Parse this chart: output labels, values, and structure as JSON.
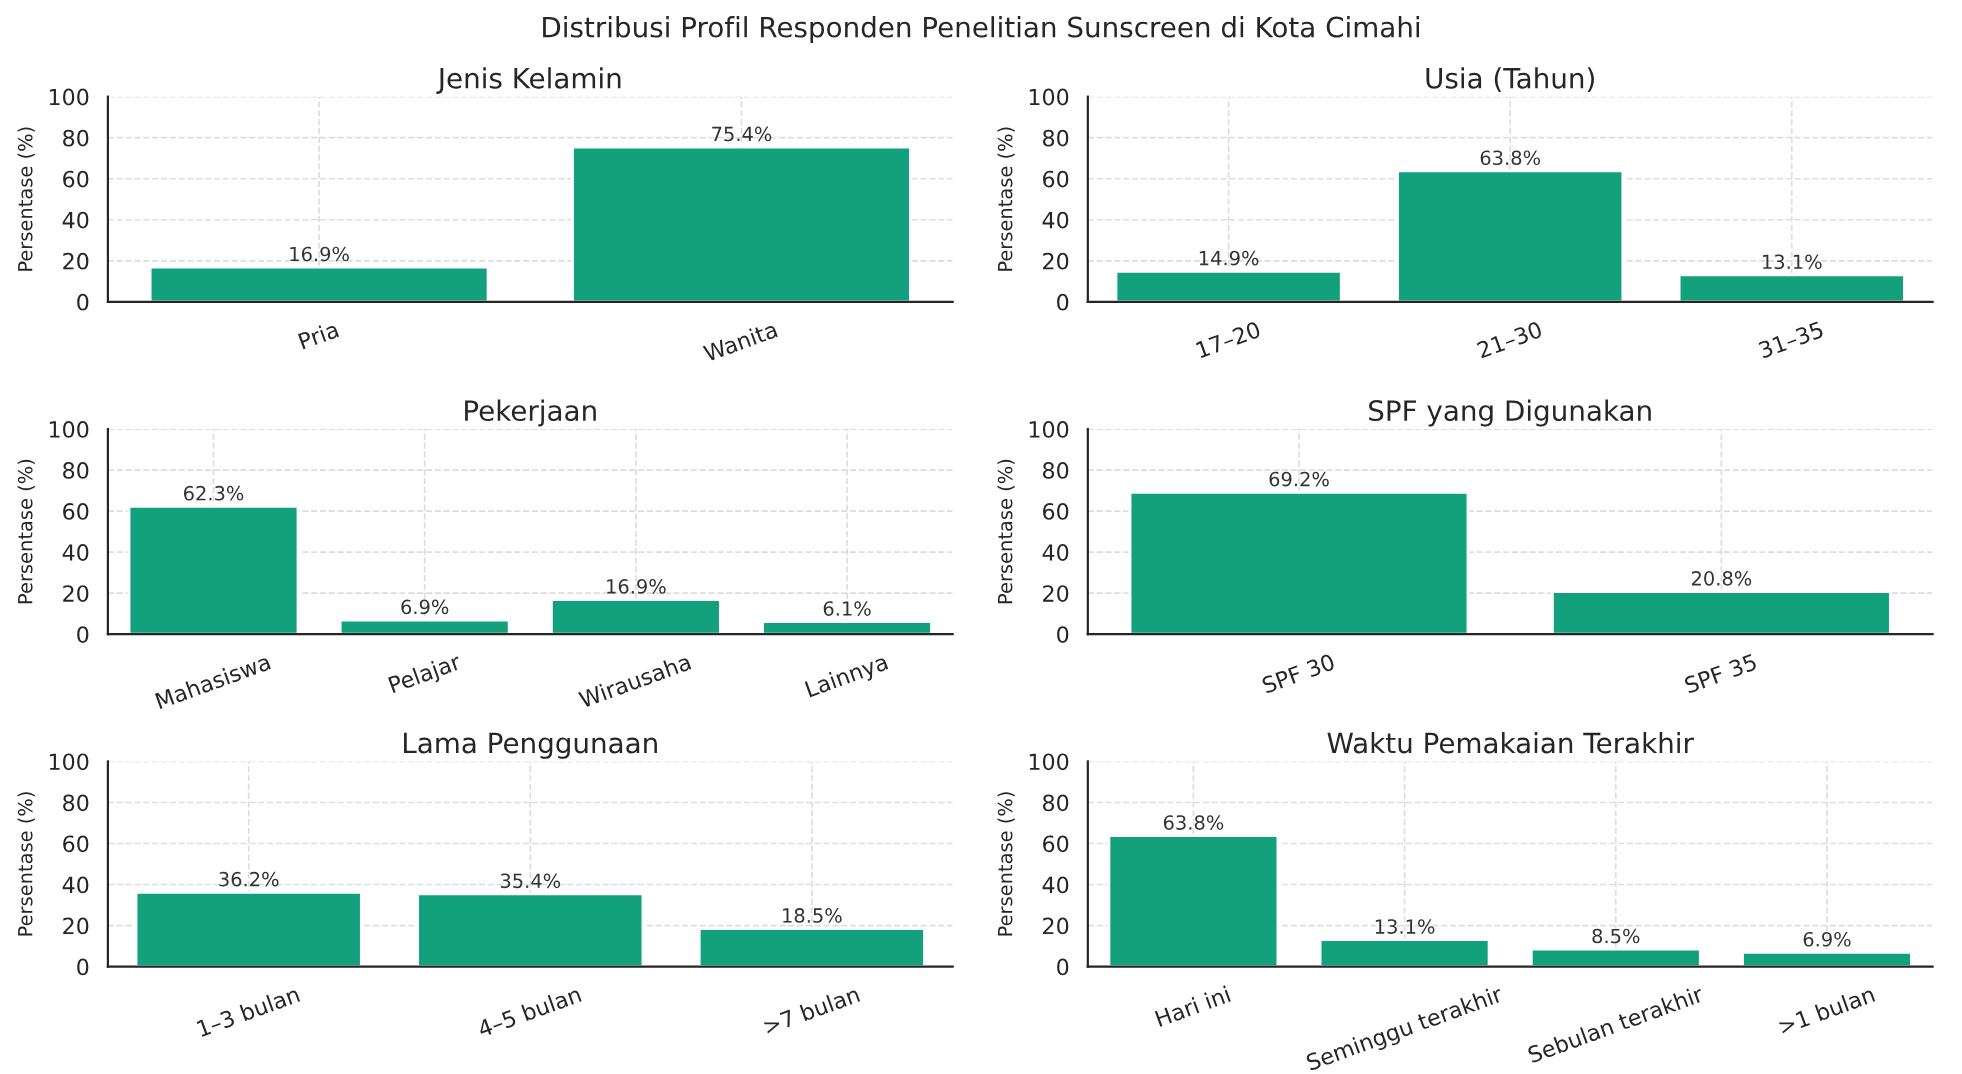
{
  "chart_data": [
    {
      "type": "bar",
      "title": "Jenis Kelamin",
      "ylabel": "Persentase (%)",
      "annotations": [
        "Distribusi Profil Responden Penelitian Sunscreen di Kota Cimahi"
      ],
      "categories": [
        "Pria",
        "Wanita"
      ],
      "values": [
        16.9,
        75.4
      ],
      "value_labels": [
        "16.9%",
        "75.4%"
      ],
      "color": "#13a07c",
      "ylim": [
        0,
        100
      ],
      "yticks": [
        0,
        20,
        40,
        60,
        80,
        100
      ],
      "grid": true
    },
    {
      "type": "bar",
      "title": "Usia (Tahun)",
      "ylabel": "Persentase (%)",
      "categories": [
        "17–20",
        "21–30",
        "31–35"
      ],
      "values": [
        14.9,
        63.8,
        13.1
      ],
      "value_labels": [
        "14.9%",
        "63.8%",
        "13.1%"
      ],
      "color": "#13a07c",
      "ylim": [
        0,
        100
      ],
      "yticks": [
        0,
        20,
        40,
        60,
        80,
        100
      ],
      "grid": true
    },
    {
      "type": "bar",
      "title": "Pekerjaan",
      "ylabel": "Persentase (%)",
      "categories": [
        "Mahasiswa",
        "Pelajar",
        "Wirausaha",
        "Lainnya"
      ],
      "values": [
        62.3,
        6.9,
        16.9,
        6.1
      ],
      "value_labels": [
        "62.3%",
        "6.9%",
        "16.9%",
        "6.1%"
      ],
      "color": "#13a07c",
      "ylim": [
        0,
        100
      ],
      "yticks": [
        0,
        20,
        40,
        60,
        80,
        100
      ],
      "grid": true
    },
    {
      "type": "bar",
      "title": "SPF yang Digunakan",
      "ylabel": "Persentase (%)",
      "categories": [
        "SPF 30",
        "SPF 35"
      ],
      "values": [
        69.2,
        20.8
      ],
      "value_labels": [
        "69.2%",
        "20.8%"
      ],
      "color": "#13a07c",
      "ylim": [
        0,
        100
      ],
      "yticks": [
        0,
        20,
        40,
        60,
        80,
        100
      ],
      "grid": true
    },
    {
      "type": "bar",
      "title": "Lama Penggunaan",
      "ylabel": "Persentase (%)",
      "categories": [
        "1–3 bulan",
        "4–5 bulan",
        ">7 bulan"
      ],
      "values": [
        36.2,
        35.4,
        18.5
      ],
      "value_labels": [
        "36.2%",
        "35.4%",
        "18.5%"
      ],
      "color": "#13a07c",
      "ylim": [
        0,
        100
      ],
      "yticks": [
        0,
        20,
        40,
        60,
        80,
        100
      ],
      "grid": true
    },
    {
      "type": "bar",
      "title": "Waktu Pemakaian Terakhir",
      "ylabel": "Persentase (%)",
      "categories": [
        "Hari ini",
        "Seminggu terakhir",
        "Sebulan terakhir",
        ">1 bulan"
      ],
      "values": [
        63.8,
        13.1,
        8.5,
        6.9
      ],
      "value_labels": [
        "63.8%",
        "13.1%",
        "8.5%",
        "6.9%"
      ],
      "color": "#13a07c",
      "ylim": [
        0,
        100
      ],
      "yticks": [
        0,
        20,
        40,
        60,
        80,
        100
      ],
      "grid": true
    }
  ]
}
